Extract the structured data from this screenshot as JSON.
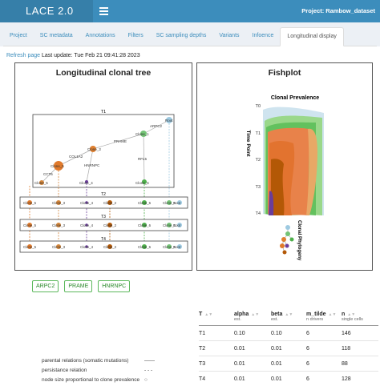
{
  "header": {
    "app_title": "LACE 2.0",
    "project": "Project: Rambow_dataset"
  },
  "tabs": [
    "Project",
    "SC metadata",
    "Annotations",
    "Filters",
    "SC sampling depths",
    "Variants",
    "Infoence",
    "Longitudinal display"
  ],
  "refresh": {
    "link": "Refresh page",
    "text": "Last update: Tue Feb 21 09:41:28 2023"
  },
  "tree_panel": {
    "title": "Longitudinal clonal tree",
    "root_box_label": "T1",
    "nodes": {
      "root": "Root",
      "arpc2": "ARPC2",
      "clone1": "Clone_1",
      "prame": "PRAME",
      "clone3": "Clone_3",
      "col1a2": "COL1A2",
      "hnrnpc": "HNRNPC",
      "rfl5": "RFL5",
      "clone5": "Clone_5",
      "cct6": "CCT6",
      "clone4": "Clone_4",
      "clone2": "Clone_2",
      "clone6": "Clone_6"
    },
    "rows": [
      {
        "label": "T2",
        "clones": [
          "Clone_5",
          "Clone_3",
          "Clone_4",
          "Clone_2",
          "Clone_6",
          "Clone_1",
          "Root"
        ]
      },
      {
        "label": "T3",
        "clones": [
          "Clone_5",
          "Clone_3",
          "Clone_4",
          "Clone_2",
          "Clone_6",
          "Clone_1",
          "Root"
        ]
      },
      {
        "label": "T4",
        "clones": [
          "Clone_5",
          "Clone_3",
          "Clone_4",
          "Clone_2",
          "Clone_6",
          "Clone_1",
          "Root"
        ]
      }
    ]
  },
  "fish_panel": {
    "title": "Fishplot",
    "subtitle": "Clonal Prevalence",
    "ylabel": "Time Point",
    "ticks": [
      "T0",
      "T1",
      "T2",
      "T3",
      "T4"
    ],
    "phylo_label": "Clonal Phylogeny"
  },
  "gene_buttons": [
    "ARPC2",
    "PRAME",
    "HNRNPC"
  ],
  "legend": [
    {
      "text": "parental relations (somatic mutations)",
      "symbol": "——"
    },
    {
      "text": "persistance relation",
      "symbol": "- - -"
    },
    {
      "text": "node size proportional to clone prevalence",
      "symbol": "○"
    }
  ],
  "table": {
    "headers": [
      {
        "label": "T",
        "sub": ""
      },
      {
        "label": "alpha",
        "sub": "est."
      },
      {
        "label": "beta",
        "sub": "est."
      },
      {
        "label": "m_tilde",
        "sub": "n drivers"
      },
      {
        "label": "n",
        "sub": "single cells"
      }
    ],
    "rows": [
      [
        "T1",
        "0.10",
        "0.10",
        "6",
        "146"
      ],
      [
        "T2",
        "0.01",
        "0.01",
        "6",
        "118"
      ],
      [
        "T3",
        "0.01",
        "0.01",
        "6",
        "88"
      ],
      [
        "T4",
        "0.01",
        "0.01",
        "6",
        "128"
      ]
    ]
  },
  "colors": {
    "header": "#3c8dbc",
    "brand": "#367fa9",
    "link": "#3c8dbc",
    "clone5": "#e07a2c",
    "clone3": "#d4863a",
    "clone4": "#6a3d9a",
    "clone2": "#b35806",
    "clone6": "#4daf4a",
    "clone1": "#74c476",
    "root": "#9ecae1",
    "button": "#5cb85c"
  }
}
